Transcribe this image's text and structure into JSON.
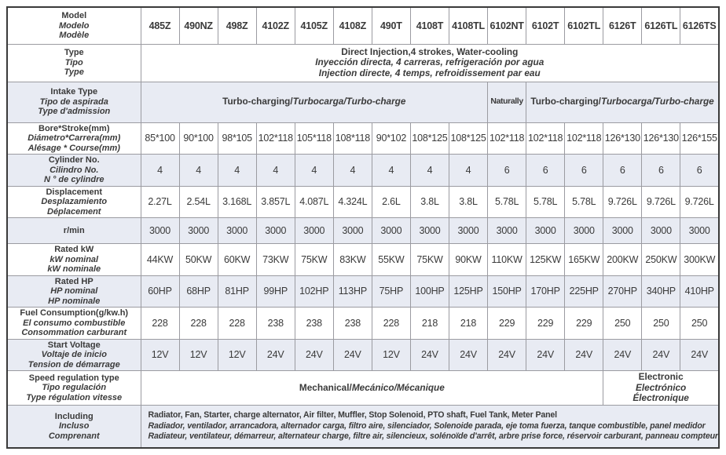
{
  "colors": {
    "shaded_row": "#e8ebf3",
    "grid_line": "#9b9ba1",
    "outer_border": "#3a3a3a",
    "text": "#3a3a3a"
  },
  "table": {
    "rows": [
      {
        "name": "model",
        "kind": "header",
        "shaded": false,
        "label": [
          "Model",
          "Modelo",
          "Modèle"
        ],
        "values": [
          "485Z",
          "490NZ",
          "498Z",
          "4102Z",
          "4105Z",
          "4108Z",
          "490T",
          "4108T",
          "4108TL",
          "6102NT",
          "6102T",
          "6102TL",
          "6126T",
          "6126TL",
          "6126TS"
        ]
      },
      {
        "name": "type",
        "kind": "span",
        "shaded": false,
        "label": [
          "Type",
          "Tipo",
          "Type"
        ],
        "spans": [
          {
            "cols": 15,
            "lines": [
              [
                {
                  "t": "Direct Injection,4 strokes, Water-cooling",
                  "i": false
                }
              ],
              [
                {
                  "t": "Inyección directa, 4 carreras, refrigeración por agua",
                  "i": true
                }
              ],
              [
                {
                  "t": "Injection directe, 4 temps, refroidissement par eau",
                  "i": true
                }
              ]
            ]
          }
        ]
      },
      {
        "name": "intake-type",
        "kind": "span",
        "shaded": true,
        "label": [
          "Intake Type",
          "Tipo de aspirada",
          "Type d'admission"
        ],
        "spans": [
          {
            "cols": 9,
            "lines": [
              [
                {
                  "t": "Turbo-charging/",
                  "i": false
                },
                {
                  "t": "Turbocarga/Turbo-charge",
                  "i": true
                }
              ]
            ]
          },
          {
            "cols": 1,
            "narrow": true,
            "lines": [
              [
                {
                  "t": "Naturally",
                  "i": false
                }
              ]
            ]
          },
          {
            "cols": 5,
            "lines": [
              [
                {
                  "t": "Turbo-charging/",
                  "i": false
                },
                {
                  "t": "Turbocarga/Turbo-charge",
                  "i": true
                }
              ]
            ]
          }
        ]
      },
      {
        "name": "bore-stroke",
        "kind": "values",
        "shaded": false,
        "label": [
          "Bore*Stroke(mm)",
          "Diámetro*Carrera(mm)",
          "Alésage * Course(mm)"
        ],
        "values": [
          "85*100",
          "90*100",
          "98*105",
          "102*118",
          "105*118",
          "108*118",
          "90*102",
          "108*125",
          "108*125",
          "102*118",
          "102*118",
          "102*118",
          "126*130",
          "126*130",
          "126*155"
        ]
      },
      {
        "name": "cylinder-no",
        "kind": "values",
        "shaded": true,
        "label": [
          "Cylinder No.",
          "Cilindro No.",
          "N ° de cylindre"
        ],
        "values": [
          "4",
          "4",
          "4",
          "4",
          "4",
          "4",
          "4",
          "4",
          "4",
          "6",
          "6",
          "6",
          "6",
          "6",
          "6"
        ]
      },
      {
        "name": "displacement",
        "kind": "values",
        "shaded": false,
        "label": [
          "Displacement",
          "Desplazamiento",
          "Déplacement"
        ],
        "values": [
          "2.27L",
          "2.54L",
          "3.168L",
          "3.857L",
          "4.087L",
          "4.324L",
          "2.6L",
          "3.8L",
          "3.8L",
          "5.78L",
          "5.78L",
          "5.78L",
          "9.726L",
          "9.726L",
          "9.726L"
        ]
      },
      {
        "name": "rpm",
        "kind": "values",
        "shaded": true,
        "label": [
          "r/min"
        ],
        "values": [
          "3000",
          "3000",
          "3000",
          "3000",
          "3000",
          "3000",
          "3000",
          "3000",
          "3000",
          "3000",
          "3000",
          "3000",
          "3000",
          "3000",
          "3000"
        ]
      },
      {
        "name": "rated-kw",
        "kind": "values",
        "shaded": false,
        "label": [
          "Rated kW",
          "kW nominal",
          "kW nominale"
        ],
        "values": [
          "44KW",
          "50KW",
          "60KW",
          "73KW",
          "75KW",
          "83KW",
          "55KW",
          "75KW",
          "90KW",
          "110KW",
          "125KW",
          "165KW",
          "200KW",
          "250KW",
          "300KW"
        ]
      },
      {
        "name": "rated-hp",
        "kind": "values",
        "shaded": true,
        "label": [
          "Rated HP",
          "HP nominal",
          "HP nominale"
        ],
        "values": [
          "60HP",
          "68HP",
          "81HP",
          "99HP",
          "102HP",
          "113HP",
          "75HP",
          "100HP",
          "125HP",
          "150HP",
          "170HP",
          "225HP",
          "270HP",
          "340HP",
          "410HP"
        ]
      },
      {
        "name": "fuel-consumption",
        "kind": "values",
        "shaded": false,
        "label": [
          "Fuel Consumption(g/kw.h)",
          "El consumo combustible",
          "Consommation carburant"
        ],
        "values": [
          "228",
          "228",
          "228",
          "238",
          "238",
          "238",
          "228",
          "218",
          "218",
          "229",
          "229",
          "229",
          "250",
          "250",
          "250"
        ]
      },
      {
        "name": "start-voltage",
        "kind": "values",
        "shaded": true,
        "label": [
          "Start Voltage",
          "Voltaje de inicio",
          "Tension de démarrage"
        ],
        "values": [
          "12V",
          "12V",
          "12V",
          "24V",
          "24V",
          "24V",
          "12V",
          "24V",
          "24V",
          "24V",
          "24V",
          "24V",
          "24V",
          "24V",
          "24V"
        ]
      },
      {
        "name": "speed-regulation",
        "kind": "span",
        "shaded": false,
        "label": [
          "Speed regulation type",
          "Tipo regulación",
          "Type régulation vitesse"
        ],
        "spans": [
          {
            "cols": 12,
            "lines": [
              [
                {
                  "t": "Mechanical/",
                  "i": false
                },
                {
                  "t": "Mecánico/Mécanique",
                  "i": true
                }
              ]
            ]
          },
          {
            "cols": 3,
            "lines": [
              [
                {
                  "t": "Electronic",
                  "i": false
                }
              ],
              [
                {
                  "t": "Electrónico",
                  "i": true
                }
              ],
              [
                {
                  "t": "Électronique",
                  "i": true
                }
              ]
            ]
          }
        ]
      },
      {
        "name": "including",
        "kind": "span",
        "shaded": true,
        "label": [
          "Including",
          "Incluso",
          "Comprenant"
        ],
        "spans": [
          {
            "cols": 15,
            "align": "left",
            "lines": [
              [
                {
                  "t": "Radiator, Fan, Starter, charge alternator, Air filter, Muffler, Stop Solenoid, PTO shaft, Fuel Tank, Meter Panel",
                  "i": false
                }
              ],
              [
                {
                  "t": "Radiador, ventilador, arrancadora, alternador carga, filtro aire, silenciador, Solenoide parada, eje toma fuerza, tanque combustible, panel medidor",
                  "i": true
                }
              ],
              [
                {
                  "t": "Radiateur, ventilateur, démarreur, alternateur charge, filtre air, silencieux, solénoïde d'arrêt, arbre prise force, réservoir carburant, panneau compteur",
                  "i": true
                }
              ]
            ]
          }
        ]
      }
    ]
  }
}
